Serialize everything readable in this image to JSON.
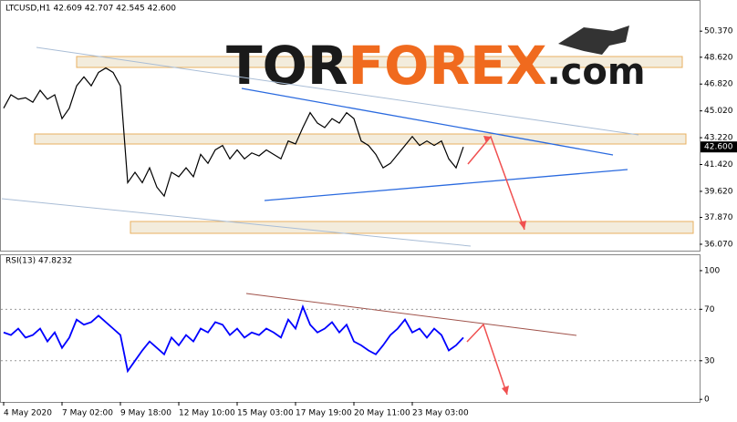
{
  "watermark": {
    "part1": "TOR",
    "part2": "FOREX",
    "part3": ".com"
  },
  "chart_data": [
    {
      "type": "line",
      "title": "LTCUSD,H1  42.609 42.707 42.545 42.600",
      "series": [
        {
          "name": "LTCUSD",
          "color": "#000000",
          "values": [
            45.2,
            46.1,
            45.8,
            45.9,
            45.6,
            46.4,
            45.8,
            46.1,
            44.5,
            45.2,
            46.7,
            47.3,
            46.7,
            47.6,
            47.9,
            47.6,
            46.7,
            40.2,
            40.9,
            40.2,
            41.2,
            39.9,
            39.3,
            40.9,
            40.6,
            41.2,
            40.6,
            42.1,
            41.5,
            42.4,
            42.7,
            41.8,
            42.4,
            41.8,
            42.2,
            42.0,
            42.4,
            42.1,
            41.8,
            43.0,
            42.8,
            43.9,
            44.9,
            44.2,
            43.9,
            44.5,
            44.2,
            44.9,
            44.5,
            43.0,
            42.7,
            42.1,
            41.2,
            41.5,
            42.1,
            42.7,
            43.3,
            42.7,
            43.0,
            42.7,
            43.0,
            41.8,
            41.2,
            42.6
          ]
        }
      ],
      "last_price": {
        "value": 42.6,
        "label": "42.600"
      },
      "ylim": [
        35.64,
        52.4
      ],
      "yticks": [
        {
          "value": 50.37,
          "label": "50.370"
        },
        {
          "value": 48.62,
          "label": "48.620"
        },
        {
          "value": 46.82,
          "label": "46.820"
        },
        {
          "value": 45.02,
          "label": "45.020"
        },
        {
          "value": 43.22,
          "label": "43.220"
        },
        {
          "value": 41.42,
          "label": "41.420"
        },
        {
          "value": 39.62,
          "label": "39.620"
        },
        {
          "value": 37.87,
          "label": "37.870"
        },
        {
          "value": 36.07,
          "label": "36.070"
        }
      ]
    },
    {
      "type": "line",
      "title": "RSI(13) 47.8232",
      "categories": [
        "4 May 2020",
        null,
        null,
        null,
        null,
        null,
        null,
        null,
        "7 May 02:00",
        null,
        null,
        null,
        null,
        null,
        null,
        null,
        "9 May 18:00",
        null,
        null,
        null,
        null,
        null,
        null,
        null,
        "12 May 10:00",
        null,
        null,
        null,
        null,
        null,
        null,
        null,
        "15 May 03:00",
        null,
        null,
        null,
        null,
        null,
        null,
        null,
        "17 May 19:00",
        null,
        null,
        null,
        null,
        null,
        null,
        null,
        "20 May 11:00",
        null,
        null,
        null,
        null,
        null,
        null,
        null,
        "23 May 03:00",
        null,
        null,
        null,
        null,
        null,
        null,
        null
      ],
      "series": [
        {
          "name": "RSI(13)",
          "color": "#0000ff",
          "values": [
            52,
            50,
            55,
            48,
            50,
            55,
            45,
            52,
            40,
            48,
            62,
            58,
            60,
            65,
            60,
            55,
            50,
            22,
            30,
            38,
            45,
            40,
            35,
            48,
            42,
            50,
            45,
            55,
            52,
            60,
            58,
            50,
            55,
            48,
            52,
            50,
            55,
            52,
            48,
            62,
            55,
            72,
            58,
            52,
            55,
            60,
            52,
            58,
            45,
            42,
            38,
            35,
            42,
            50,
            55,
            62,
            52,
            55,
            48,
            55,
            50,
            38,
            42,
            48
          ]
        }
      ],
      "ylim": [
        -2,
        112
      ],
      "yticks": [
        0,
        30,
        70,
        100
      ]
    }
  ]
}
